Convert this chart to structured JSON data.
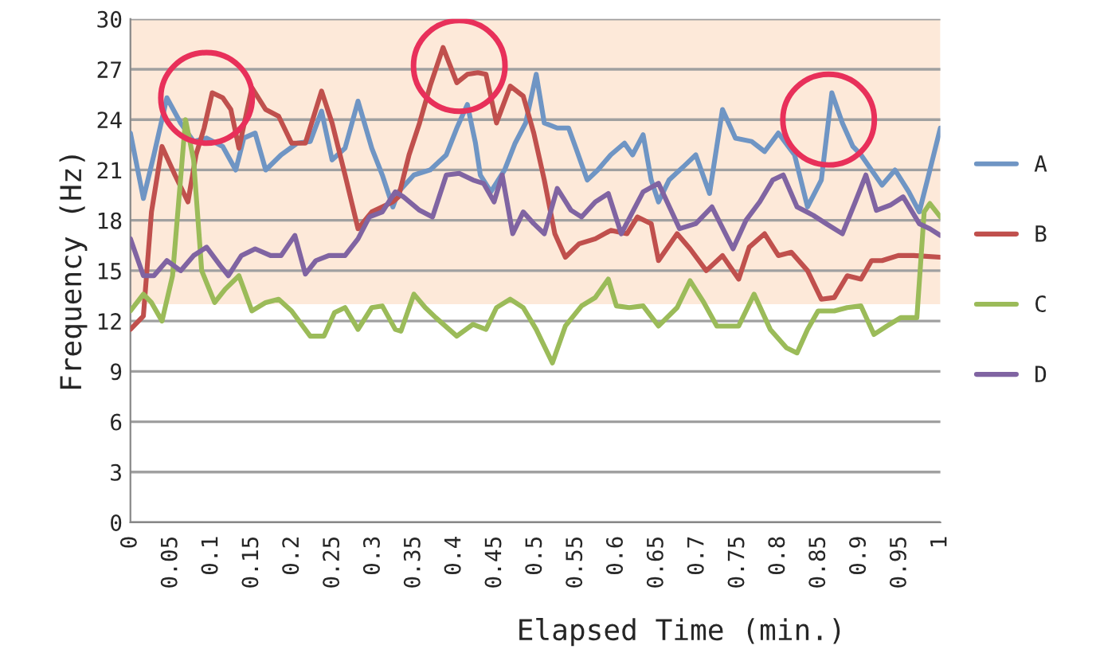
{
  "chart_data": {
    "type": "line",
    "xlabel": "Elapsed Time (min.)",
    "ylabel": "Frequency (Hz)",
    "xlim": [
      0,
      1
    ],
    "xticks": [
      0,
      0.05,
      0.1,
      0.15,
      0.2,
      0.25,
      0.3,
      0.35,
      0.4,
      0.45,
      0.5,
      0.55,
      0.6,
      0.65,
      0.7,
      0.75,
      0.8,
      0.85,
      0.9,
      0.95,
      1
    ],
    "ylim": [
      0,
      30
    ],
    "yticks": [
      0,
      3,
      6,
      9,
      12,
      15,
      18,
      21,
      24,
      27,
      30
    ],
    "grid": "y",
    "legend": "right",
    "marker": "none",
    "line_style": "solid",
    "bands": [
      {
        "axis": "y",
        "from": 13,
        "to": 30,
        "color": "#fde9d9"
      }
    ],
    "series": [
      {
        "name": "A",
        "color": "#6f95c4",
        "x": [
          0,
          0.016,
          0.029,
          0.045,
          0.062,
          0.078,
          0.094,
          0.114,
          0.13,
          0.14,
          0.154,
          0.167,
          0.186,
          0.206,
          0.222,
          0.236,
          0.249,
          0.265,
          0.281,
          0.298,
          0.311,
          0.324,
          0.331,
          0.35,
          0.37,
          0.39,
          0.403,
          0.416,
          0.426,
          0.432,
          0.445,
          0.462,
          0.475,
          0.488,
          0.501,
          0.511,
          0.527,
          0.541,
          0.55,
          0.564,
          0.577,
          0.593,
          0.61,
          0.62,
          0.633,
          0.643,
          0.652,
          0.665,
          0.685,
          0.698,
          0.715,
          0.731,
          0.747,
          0.767,
          0.783,
          0.8,
          0.82,
          0.836,
          0.853,
          0.866,
          0.879,
          0.892,
          0.902,
          0.915,
          0.928,
          0.944,
          0.961,
          0.974,
          0.984,
          1.0
        ],
        "values": [
          23.2,
          19.3,
          21.9,
          25.3,
          23.8,
          22.7,
          22.9,
          22.4,
          21.0,
          22.9,
          23.2,
          21.0,
          21.9,
          22.6,
          22.7,
          24.5,
          21.6,
          22.3,
          25.1,
          22.3,
          20.7,
          18.8,
          19.7,
          20.7,
          21.0,
          21.9,
          23.5,
          24.9,
          22.6,
          20.7,
          19.7,
          21.0,
          22.6,
          23.8,
          26.7,
          23.8,
          23.5,
          23.5,
          22.3,
          20.4,
          21.0,
          21.9,
          22.6,
          21.9,
          23.1,
          20.4,
          19.1,
          20.4,
          21.3,
          21.9,
          19.6,
          24.6,
          22.9,
          22.7,
          22.1,
          23.2,
          21.9,
          18.8,
          20.4,
          25.6,
          23.8,
          22.4,
          21.9,
          21.0,
          20.1,
          21.0,
          19.7,
          18.5,
          20.4,
          23.5
        ]
      },
      {
        "name": "B",
        "color": "#c0504d",
        "x": [
          0,
          0.016,
          0.026,
          0.039,
          0.055,
          0.071,
          0.081,
          0.091,
          0.101,
          0.114,
          0.124,
          0.134,
          0.15,
          0.167,
          0.183,
          0.199,
          0.216,
          0.236,
          0.249,
          0.265,
          0.281,
          0.298,
          0.324,
          0.331,
          0.344,
          0.357,
          0.37,
          0.386,
          0.403,
          0.416,
          0.429,
          0.439,
          0.452,
          0.469,
          0.485,
          0.498,
          0.511,
          0.524,
          0.537,
          0.554,
          0.574,
          0.593,
          0.613,
          0.626,
          0.643,
          0.652,
          0.675,
          0.691,
          0.711,
          0.731,
          0.751,
          0.764,
          0.783,
          0.8,
          0.816,
          0.836,
          0.853,
          0.869,
          0.885,
          0.902,
          0.915,
          0.928,
          0.948,
          0.967,
          1.0
        ],
        "values": [
          11.5,
          12.3,
          18.5,
          22.4,
          20.7,
          19.1,
          21.9,
          23.5,
          25.6,
          25.3,
          24.6,
          22.3,
          25.9,
          24.6,
          24.2,
          22.6,
          22.6,
          25.7,
          23.8,
          20.7,
          17.5,
          18.5,
          19.1,
          19.4,
          21.9,
          23.8,
          26.0,
          28.3,
          26.2,
          26.7,
          26.8,
          26.7,
          23.8,
          26.0,
          25.4,
          23.2,
          20.4,
          17.2,
          15.8,
          16.6,
          16.9,
          17.4,
          17.2,
          18.2,
          17.8,
          15.6,
          17.2,
          16.3,
          15.0,
          15.9,
          14.5,
          16.4,
          17.2,
          15.9,
          16.1,
          15.0,
          13.3,
          13.4,
          14.7,
          14.5,
          15.6,
          15.6,
          15.9,
          15.9,
          15.8
        ]
      },
      {
        "name": "C",
        "color": "#9bbb59",
        "x": [
          0,
          0.016,
          0.026,
          0.039,
          0.052,
          0.068,
          0.078,
          0.088,
          0.104,
          0.117,
          0.134,
          0.15,
          0.167,
          0.183,
          0.199,
          0.222,
          0.239,
          0.252,
          0.265,
          0.281,
          0.298,
          0.311,
          0.327,
          0.334,
          0.35,
          0.364,
          0.377,
          0.403,
          0.423,
          0.439,
          0.452,
          0.469,
          0.485,
          0.501,
          0.521,
          0.537,
          0.557,
          0.574,
          0.59,
          0.6,
          0.616,
          0.633,
          0.652,
          0.675,
          0.691,
          0.708,
          0.724,
          0.751,
          0.77,
          0.79,
          0.81,
          0.823,
          0.836,
          0.849,
          0.869,
          0.885,
          0.902,
          0.918,
          0.934,
          0.951,
          0.971,
          0.98,
          0.987,
          1.0
        ],
        "values": [
          12.6,
          13.6,
          13.1,
          12.0,
          14.7,
          24.0,
          21.6,
          15.0,
          13.1,
          13.9,
          14.7,
          12.6,
          13.1,
          13.3,
          12.6,
          11.1,
          11.1,
          12.5,
          12.8,
          11.5,
          12.8,
          12.9,
          11.5,
          11.4,
          13.6,
          12.8,
          12.2,
          11.1,
          11.8,
          11.5,
          12.8,
          13.3,
          12.8,
          11.5,
          9.5,
          11.7,
          12.9,
          13.4,
          14.5,
          12.9,
          12.8,
          12.9,
          11.7,
          12.8,
          14.4,
          13.1,
          11.7,
          11.7,
          13.6,
          11.5,
          10.4,
          10.1,
          11.5,
          12.6,
          12.6,
          12.8,
          12.9,
          11.2,
          11.7,
          12.2,
          12.2,
          18.5,
          19.0,
          18.2
        ]
      },
      {
        "name": "D",
        "color": "#8064a2",
        "x": [
          0,
          0.016,
          0.029,
          0.045,
          0.062,
          0.078,
          0.094,
          0.111,
          0.121,
          0.137,
          0.154,
          0.173,
          0.186,
          0.203,
          0.216,
          0.229,
          0.245,
          0.265,
          0.281,
          0.295,
          0.311,
          0.327,
          0.337,
          0.357,
          0.373,
          0.39,
          0.406,
          0.423,
          0.436,
          0.449,
          0.459,
          0.472,
          0.485,
          0.498,
          0.511,
          0.527,
          0.544,
          0.557,
          0.574,
          0.59,
          0.606,
          0.62,
          0.633,
          0.652,
          0.678,
          0.698,
          0.718,
          0.744,
          0.76,
          0.777,
          0.793,
          0.806,
          0.823,
          0.843,
          0.859,
          0.879,
          0.895,
          0.908,
          0.921,
          0.938,
          0.954,
          0.974,
          0.987,
          1.0
        ],
        "values": [
          16.9,
          14.7,
          14.7,
          15.6,
          15.0,
          15.9,
          16.4,
          15.3,
          14.7,
          15.9,
          16.3,
          15.9,
          15.9,
          17.1,
          14.8,
          15.6,
          15.9,
          15.9,
          16.9,
          18.2,
          18.5,
          19.7,
          19.4,
          18.6,
          18.2,
          20.7,
          20.8,
          20.4,
          20.2,
          19.1,
          20.7,
          17.2,
          18.5,
          17.8,
          17.2,
          19.9,
          18.6,
          18.2,
          19.1,
          19.6,
          17.2,
          18.5,
          19.7,
          20.2,
          17.5,
          17.8,
          18.8,
          16.3,
          18.0,
          19.1,
          20.4,
          20.7,
          18.8,
          18.3,
          17.8,
          17.2,
          19.1,
          20.7,
          18.6,
          18.9,
          19.4,
          17.8,
          17.5,
          17.1
        ]
      }
    ]
  }
}
